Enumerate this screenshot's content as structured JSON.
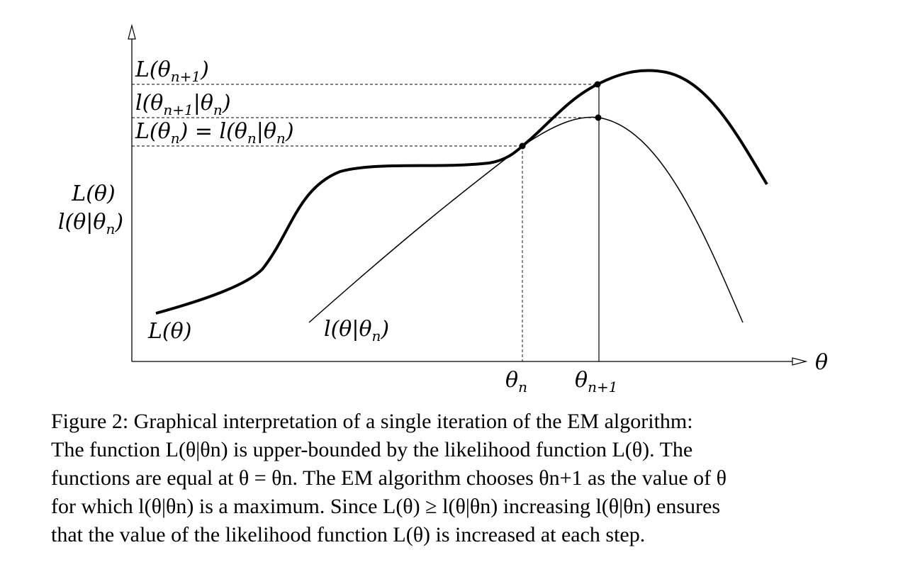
{
  "axes": {
    "x_label": "θ",
    "y_label_line1": "L(θ)",
    "y_label_line2": "l(θ|θn)"
  },
  "levels": {
    "top_label": "L(θn+1)",
    "middle_label": "l(θn+1|θn)",
    "bottom_label": "L(θn) = l(θn|θn)"
  },
  "ticks": {
    "theta_n": "θn",
    "theta_n1": "θn+1"
  },
  "curves": {
    "likelihood_label": "L(θ)",
    "bound_label": "l(θ|θn)"
  },
  "caption": {
    "lines": [
      "Figure 2: Graphical interpretation of a single iteration of the EM algorithm:",
      "The function L(θ|θn) is upper-bounded by the likelihood function L(θ). The",
      "functions are equal at θ = θn. The EM algorithm chooses θn+1 as the value of θ",
      "for which l(θ|θn) is a maximum. Since L(θ) ≥ l(θ|θn) increasing l(θ|θn) ensures",
      "that the value of the likelihood function L(θ) is increased at each step."
    ]
  }
}
